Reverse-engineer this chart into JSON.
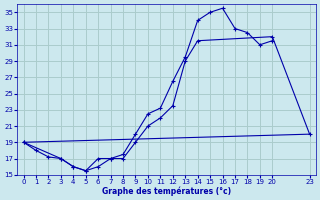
{
  "title": "Graphe des températures (°c)",
  "background_color": "#cce8ee",
  "grid_color": "#aacccc",
  "line_color": "#0000aa",
  "ylim": [
    15,
    36
  ],
  "xlim": [
    -0.5,
    23.5
  ],
  "yticks": [
    15,
    17,
    19,
    21,
    23,
    25,
    27,
    29,
    31,
    33,
    35
  ],
  "xticks": [
    0,
    1,
    2,
    3,
    4,
    5,
    6,
    7,
    8,
    9,
    10,
    11,
    12,
    13,
    14,
    15,
    16,
    17,
    18,
    19,
    20,
    23
  ],
  "series1_x": [
    0,
    1,
    2,
    3,
    4,
    5,
    6,
    7,
    8,
    9,
    10,
    11,
    12,
    13,
    14,
    15,
    16,
    17,
    18,
    19,
    20
  ],
  "series1_y": [
    19,
    18,
    17.2,
    17,
    16,
    15.5,
    16,
    17,
    17.5,
    20,
    22.5,
    23.2,
    26.5,
    29.5,
    34,
    35,
    35.5,
    33,
    32.5,
    31,
    31.5
  ],
  "series2_x": [
    0,
    3,
    4,
    5,
    6,
    7,
    8,
    9,
    10,
    11,
    12,
    13,
    14,
    20,
    23
  ],
  "series2_y": [
    19,
    17,
    16,
    15.5,
    17,
    17,
    17,
    19,
    21,
    22,
    23.5,
    29,
    31.5,
    32,
    20
  ],
  "series3_x": [
    0,
    23
  ],
  "series3_y": [
    19,
    20
  ]
}
